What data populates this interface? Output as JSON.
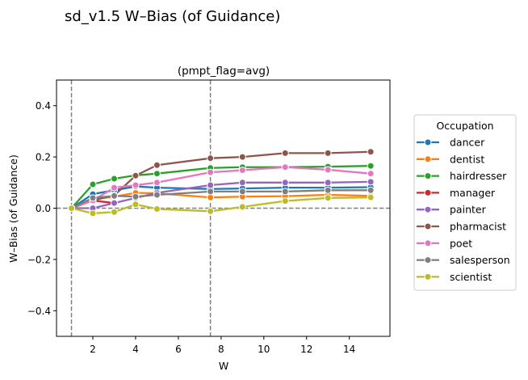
{
  "chart_data": {
    "type": "line",
    "suptitle": "sd_v1.5 W–Bias (of Guidance)",
    "title": "(pmpt_flag=avg)",
    "xlabel": "W",
    "ylabel": "W–Bias (of Guidance)",
    "xlim": [
      0.3,
      15.9
    ],
    "ylim": [
      -0.5,
      0.5
    ],
    "xticks": [
      2,
      4,
      6,
      8,
      10,
      12,
      14
    ],
    "xtick_labels": [
      "2",
      "4",
      "6",
      "8",
      "10",
      "12",
      "14"
    ],
    "yticks": [
      -0.4,
      -0.2,
      0.0,
      0.2,
      0.4
    ],
    "ytick_labels": [
      "−0.4",
      "−0.2",
      "0.0",
      "0.2",
      "0.4"
    ],
    "grid": false,
    "reference_lines": {
      "vertical": [
        1,
        7.5
      ],
      "horizontal": [
        0
      ],
      "style": "dashed",
      "color": "#808080"
    },
    "legend": {
      "title": "Occupation",
      "placement": "right-outside"
    },
    "series": [
      {
        "name": "dancer",
        "color": "#1f77b4",
        "x": [
          1,
          2,
          3,
          4,
          5,
          7.5,
          9,
          11,
          13,
          15
        ],
        "y": [
          0.0,
          0.055,
          0.07,
          0.085,
          0.08,
          0.075,
          0.077,
          0.08,
          0.08,
          0.082
        ]
      },
      {
        "name": "dentist",
        "color": "#ff7f0e",
        "x": [
          1,
          2,
          3,
          4,
          5,
          7.5,
          9,
          11,
          13,
          15
        ],
        "y": [
          0.0,
          0.035,
          0.045,
          0.06,
          0.058,
          0.042,
          0.045,
          0.047,
          0.052,
          0.048
        ]
      },
      {
        "name": "hairdresser",
        "color": "#2ca02c",
        "x": [
          1,
          2,
          3,
          4,
          5,
          7.5,
          9,
          11,
          13,
          15
        ],
        "y": [
          0.0,
          0.093,
          0.115,
          0.128,
          0.135,
          0.157,
          0.16,
          0.16,
          0.162,
          0.165
        ]
      },
      {
        "name": "manager",
        "color": "#d62728",
        "x": [
          1,
          2,
          3
        ],
        "y": [
          0.0,
          0.03,
          0.02
        ]
      },
      {
        "name": "painter",
        "color": "#9467bd",
        "x": [
          1,
          2,
          3,
          4,
          5,
          7.5,
          9,
          11,
          13,
          15
        ],
        "y": [
          0.0,
          0.0,
          0.02,
          0.04,
          0.06,
          0.09,
          0.1,
          0.1,
          0.1,
          0.103
        ]
      },
      {
        "name": "pharmacist",
        "color": "#8c564b",
        "x": [
          1,
          2,
          3,
          4,
          5,
          7.5,
          9,
          11,
          13,
          15
        ],
        "y": [
          0.0,
          0.03,
          0.05,
          0.127,
          0.168,
          0.195,
          0.2,
          0.215,
          0.215,
          0.22
        ]
      },
      {
        "name": "poet",
        "color": "#e377c2",
        "x": [
          1,
          2,
          3,
          4,
          5,
          7.5,
          9,
          11,
          13,
          15
        ],
        "y": [
          0.0,
          0.03,
          0.08,
          0.09,
          0.1,
          0.14,
          0.148,
          0.16,
          0.15,
          0.135
        ]
      },
      {
        "name": "salesperson",
        "color": "#7f7f7f",
        "x": [
          1,
          2,
          3,
          4,
          5,
          7.5,
          9,
          11,
          13,
          15
        ],
        "y": [
          0.0,
          0.04,
          0.048,
          0.045,
          0.052,
          0.065,
          0.065,
          0.065,
          0.07,
          0.07
        ]
      },
      {
        "name": "scientist",
        "color": "#bcbd22",
        "x": [
          1,
          2,
          3,
          4,
          5,
          7.5,
          9,
          11,
          13,
          15
        ],
        "y": [
          0.0,
          -0.02,
          -0.015,
          0.015,
          -0.003,
          -0.012,
          0.005,
          0.028,
          0.04,
          0.042
        ]
      }
    ]
  }
}
